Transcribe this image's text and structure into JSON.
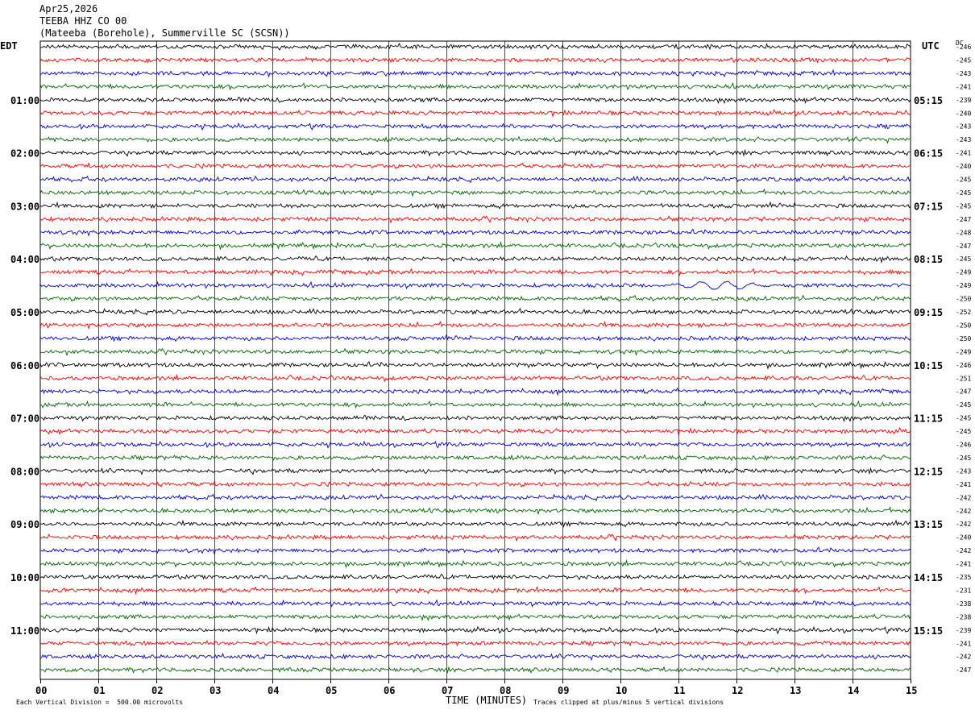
{
  "header": {
    "date": "Apr25,2026",
    "station": "TEEBA HHZ CO 00",
    "location": "(Mateeba (Borehole), Summerville SC (SCSN))"
  },
  "chart_data": {
    "type": "line",
    "title": "TEEBA HHZ CO 00",
    "left_label": "EDT",
    "right_label": "UTC",
    "dc_label": "DC",
    "xlabel": "TIME (MINUTES)",
    "xticks": [
      "00",
      "01",
      "02",
      "03",
      "04",
      "05",
      "06",
      "07",
      "08",
      "09",
      "10",
      "11",
      "12",
      "13",
      "14",
      "15"
    ],
    "xlim": [
      0,
      15
    ],
    "trace_colors": [
      "#000000",
      "#ff0000",
      "#0000cc",
      "#006600"
    ],
    "hour_labels_left": [
      "01:00",
      "02:00",
      "03:00",
      "04:00",
      "05:00",
      "06:00",
      "07:00",
      "08:00",
      "09:00",
      "10:00",
      "11:00"
    ],
    "hour_labels_right": [
      "05:15",
      "06:15",
      "07:15",
      "08:15",
      "09:15",
      "10:15",
      "11:15",
      "12:15",
      "13:15",
      "14:15",
      "15:15"
    ],
    "dc_offsets": [
      "-246",
      "-245",
      "-243",
      "-241",
      "-239",
      "-240",
      "-243",
      "-243",
      "-241",
      "-240",
      "-245",
      "-245",
      "-245",
      "-247",
      "-248",
      "-247",
      "-245",
      "-249",
      "-249",
      "-250",
      "-252",
      "-250",
      "-250",
      "-249",
      "-246",
      "-251",
      "-247",
      "-245",
      "-245",
      "-245",
      "-246",
      "-245",
      "-243",
      "-241",
      "-242",
      "-242",
      "-242",
      "-240",
      "-242",
      "-241",
      "-235",
      "-231",
      "-238",
      "-238",
      "-239",
      "-241",
      "-242",
      "-247"
    ],
    "event": {
      "trace_index": 18,
      "start_minute": 10.6,
      "end_minute": 12.8
    }
  },
  "footer": {
    "scale_note": "Each Vertical Division =  500.00 microvolts",
    "clip_note": "Traces clipped at plus/minus 5 vertical divisions"
  }
}
